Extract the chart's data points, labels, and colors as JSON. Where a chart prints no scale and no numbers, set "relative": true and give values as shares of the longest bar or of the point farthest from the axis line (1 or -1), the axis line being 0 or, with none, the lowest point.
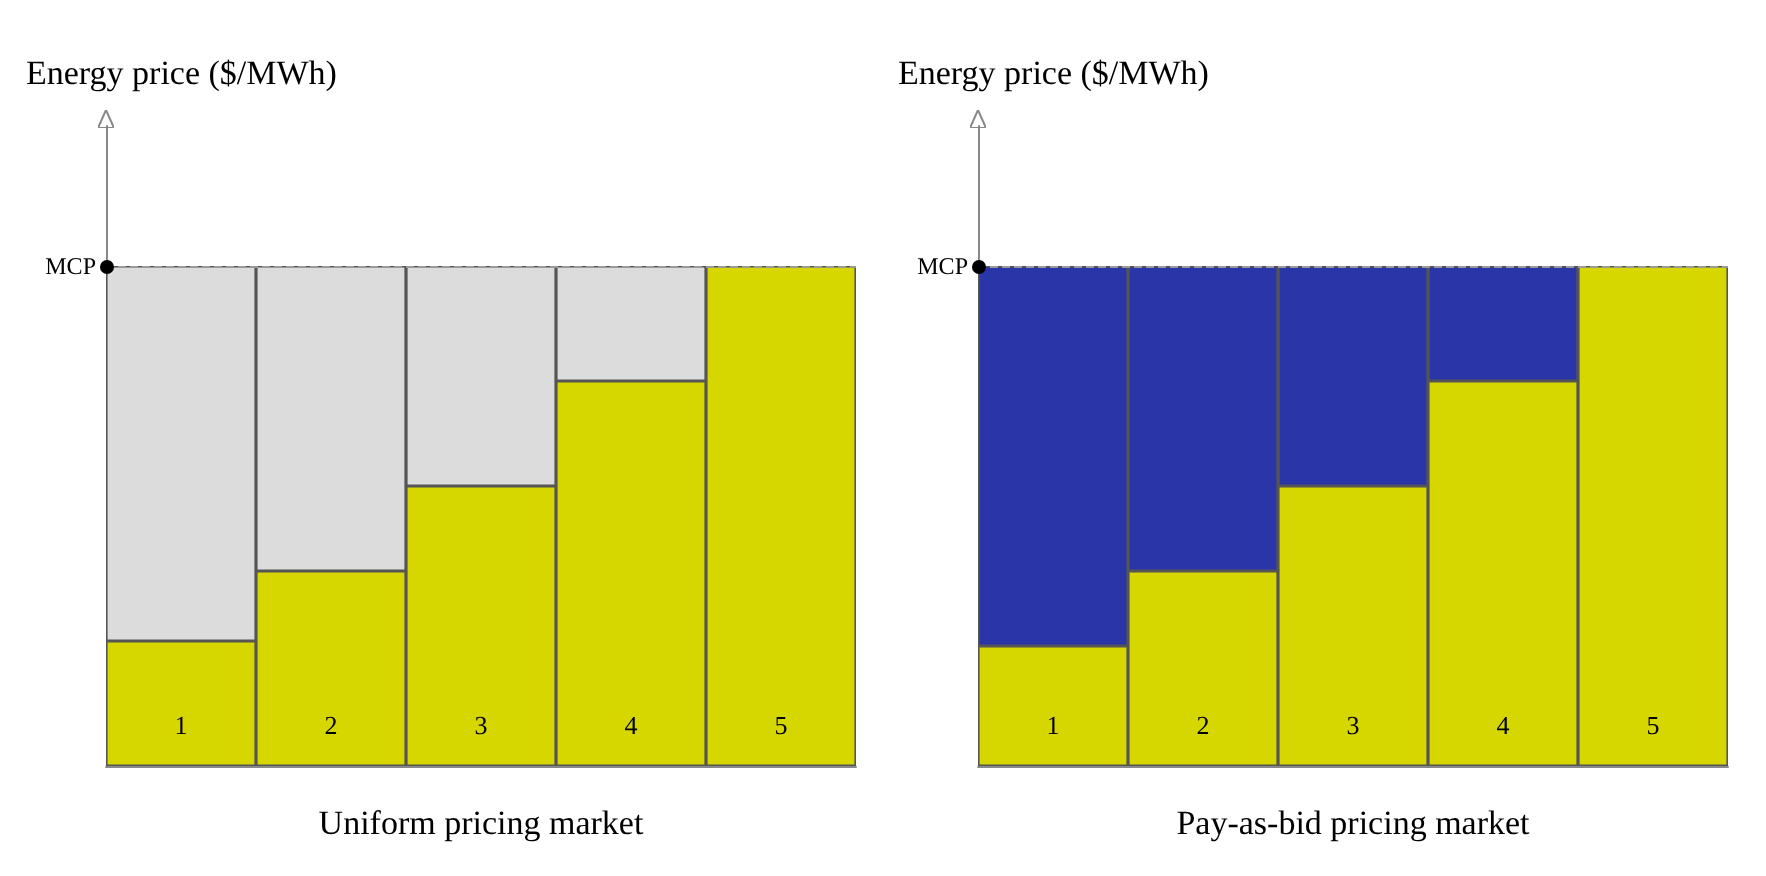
{
  "chart_data": [
    {
      "type": "bar",
      "ylabel": "Energy price ($/MWh)",
      "xlabel": "Uniform pricing market",
      "relative": true,
      "stacked": true,
      "categories": [
        "1",
        "2",
        "3",
        "4",
        "5"
      ],
      "series": [
        {
          "color": "#d6d600",
          "values": [
            0.25,
            0.39,
            0.56,
            0.77,
            1
          ]
        },
        {
          "color": "#dcdcdc",
          "values": [
            0.75,
            0.61,
            0.44,
            0.23,
            null
          ]
        }
      ],
      "ref_lines": [
        {
          "axis": "y",
          "value": 1,
          "label": "MCP",
          "color": "#9a9a9a",
          "line_style": "dashed"
        }
      ],
      "grid": false
    },
    {
      "type": "bar",
      "ylabel": "Energy price ($/MWh)",
      "xlabel": "Pay-as-bid pricing market",
      "relative": true,
      "stacked": true,
      "categories": [
        "1",
        "2",
        "3",
        "4",
        "5"
      ],
      "series": [
        {
          "color": "#d6d600",
          "values": [
            0.24,
            0.39,
            0.56,
            0.77,
            1
          ]
        },
        {
          "color": "#2a35a8",
          "values": [
            0.76,
            0.61,
            0.44,
            0.23,
            null
          ]
        }
      ],
      "ref_lines": [
        {
          "axis": "y",
          "value": 1,
          "label": "MCP",
          "color": "#9a9a9a",
          "line_style": "dashed"
        }
      ],
      "grid": false
    }
  ]
}
